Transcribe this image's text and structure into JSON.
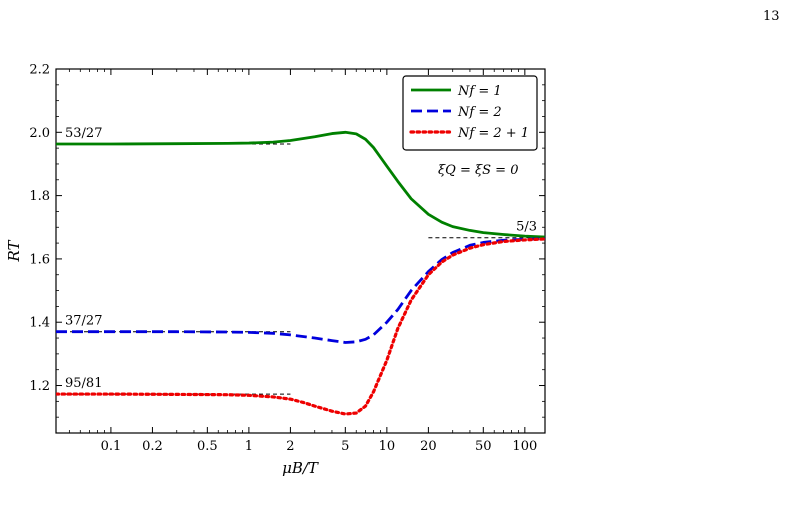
{
  "page_number": "13",
  "chart_data": {
    "type": "line",
    "title": "",
    "xlabel": "μB/T",
    "ylabel": "RT",
    "xscale": "log",
    "xlim": [
      0.04,
      140
    ],
    "ylim": [
      1.05,
      2.2
    ],
    "x_ticks": [
      0.1,
      0.2,
      0.5,
      1,
      2,
      5,
      10,
      20,
      50,
      100
    ],
    "x_tick_labels": [
      "0.1",
      "0.2",
      "0.5",
      "1",
      "2",
      "5",
      "10",
      "20",
      "50",
      "100"
    ],
    "y_ticks": [
      1.2,
      1.4,
      1.6,
      1.8,
      2.0,
      2.2
    ],
    "y_tick_labels": [
      "1.2",
      "1.4",
      "1.6",
      "1.8",
      "2.0",
      "2.2"
    ],
    "grid": false,
    "legend_position": "top-right",
    "parameter_note": "ξQ = ξS = 0",
    "series": [
      {
        "name": "Nf = 1",
        "color": "#008000",
        "style": "solid",
        "x": [
          0.04,
          0.1,
          0.3,
          0.7,
          1.0,
          1.5,
          2.0,
          3.0,
          4.0,
          5.0,
          6.0,
          7.0,
          8.0,
          10,
          12,
          15,
          20,
          25,
          30,
          40,
          50,
          70,
          100,
          140
        ],
        "y": [
          1.963,
          1.963,
          1.964,
          1.965,
          1.966,
          1.969,
          1.974,
          1.986,
          1.996,
          2.0,
          1.995,
          1.978,
          1.952,
          1.893,
          1.845,
          1.79,
          1.741,
          1.716,
          1.702,
          1.69,
          1.683,
          1.677,
          1.672,
          1.669
        ]
      },
      {
        "name": "Nf = 2",
        "color": "#0000dd",
        "style": "dashed",
        "x": [
          0.04,
          0.1,
          0.3,
          0.7,
          1.0,
          1.5,
          2.0,
          3.0,
          4.0,
          5.0,
          6.0,
          7.0,
          8.0,
          10,
          12,
          15,
          20,
          25,
          30,
          40,
          50,
          70,
          100,
          140
        ],
        "y": [
          1.37,
          1.37,
          1.37,
          1.369,
          1.368,
          1.365,
          1.36,
          1.35,
          1.342,
          1.336,
          1.338,
          1.346,
          1.36,
          1.4,
          1.44,
          1.5,
          1.56,
          1.598,
          1.62,
          1.643,
          1.652,
          1.659,
          1.662,
          1.664
        ]
      },
      {
        "name": "Nf = 2 + 1",
        "color": "#ee0000",
        "style": "dotted",
        "x": [
          0.04,
          0.1,
          0.3,
          0.7,
          1.0,
          1.5,
          2.0,
          2.5,
          3.0,
          4.0,
          5.0,
          6.0,
          7.0,
          8.0,
          10,
          12,
          15,
          20,
          25,
          30,
          40,
          50,
          70,
          100,
          140
        ],
        "y": [
          1.173,
          1.173,
          1.172,
          1.171,
          1.169,
          1.164,
          1.157,
          1.146,
          1.135,
          1.119,
          1.11,
          1.113,
          1.135,
          1.18,
          1.28,
          1.38,
          1.47,
          1.55,
          1.59,
          1.612,
          1.634,
          1.645,
          1.655,
          1.66,
          1.663
        ]
      }
    ],
    "reference_lines": [
      {
        "label": "53/27",
        "value": 1.963,
        "x_range": [
          0.04,
          2
        ]
      },
      {
        "label": "37/27",
        "value": 1.37,
        "x_range": [
          0.04,
          2
        ]
      },
      {
        "label": "95/81",
        "value": 1.173,
        "x_range": [
          0.04,
          2
        ]
      },
      {
        "label": "5/3",
        "value": 1.667,
        "x_range": [
          20,
          140
        ]
      }
    ]
  }
}
